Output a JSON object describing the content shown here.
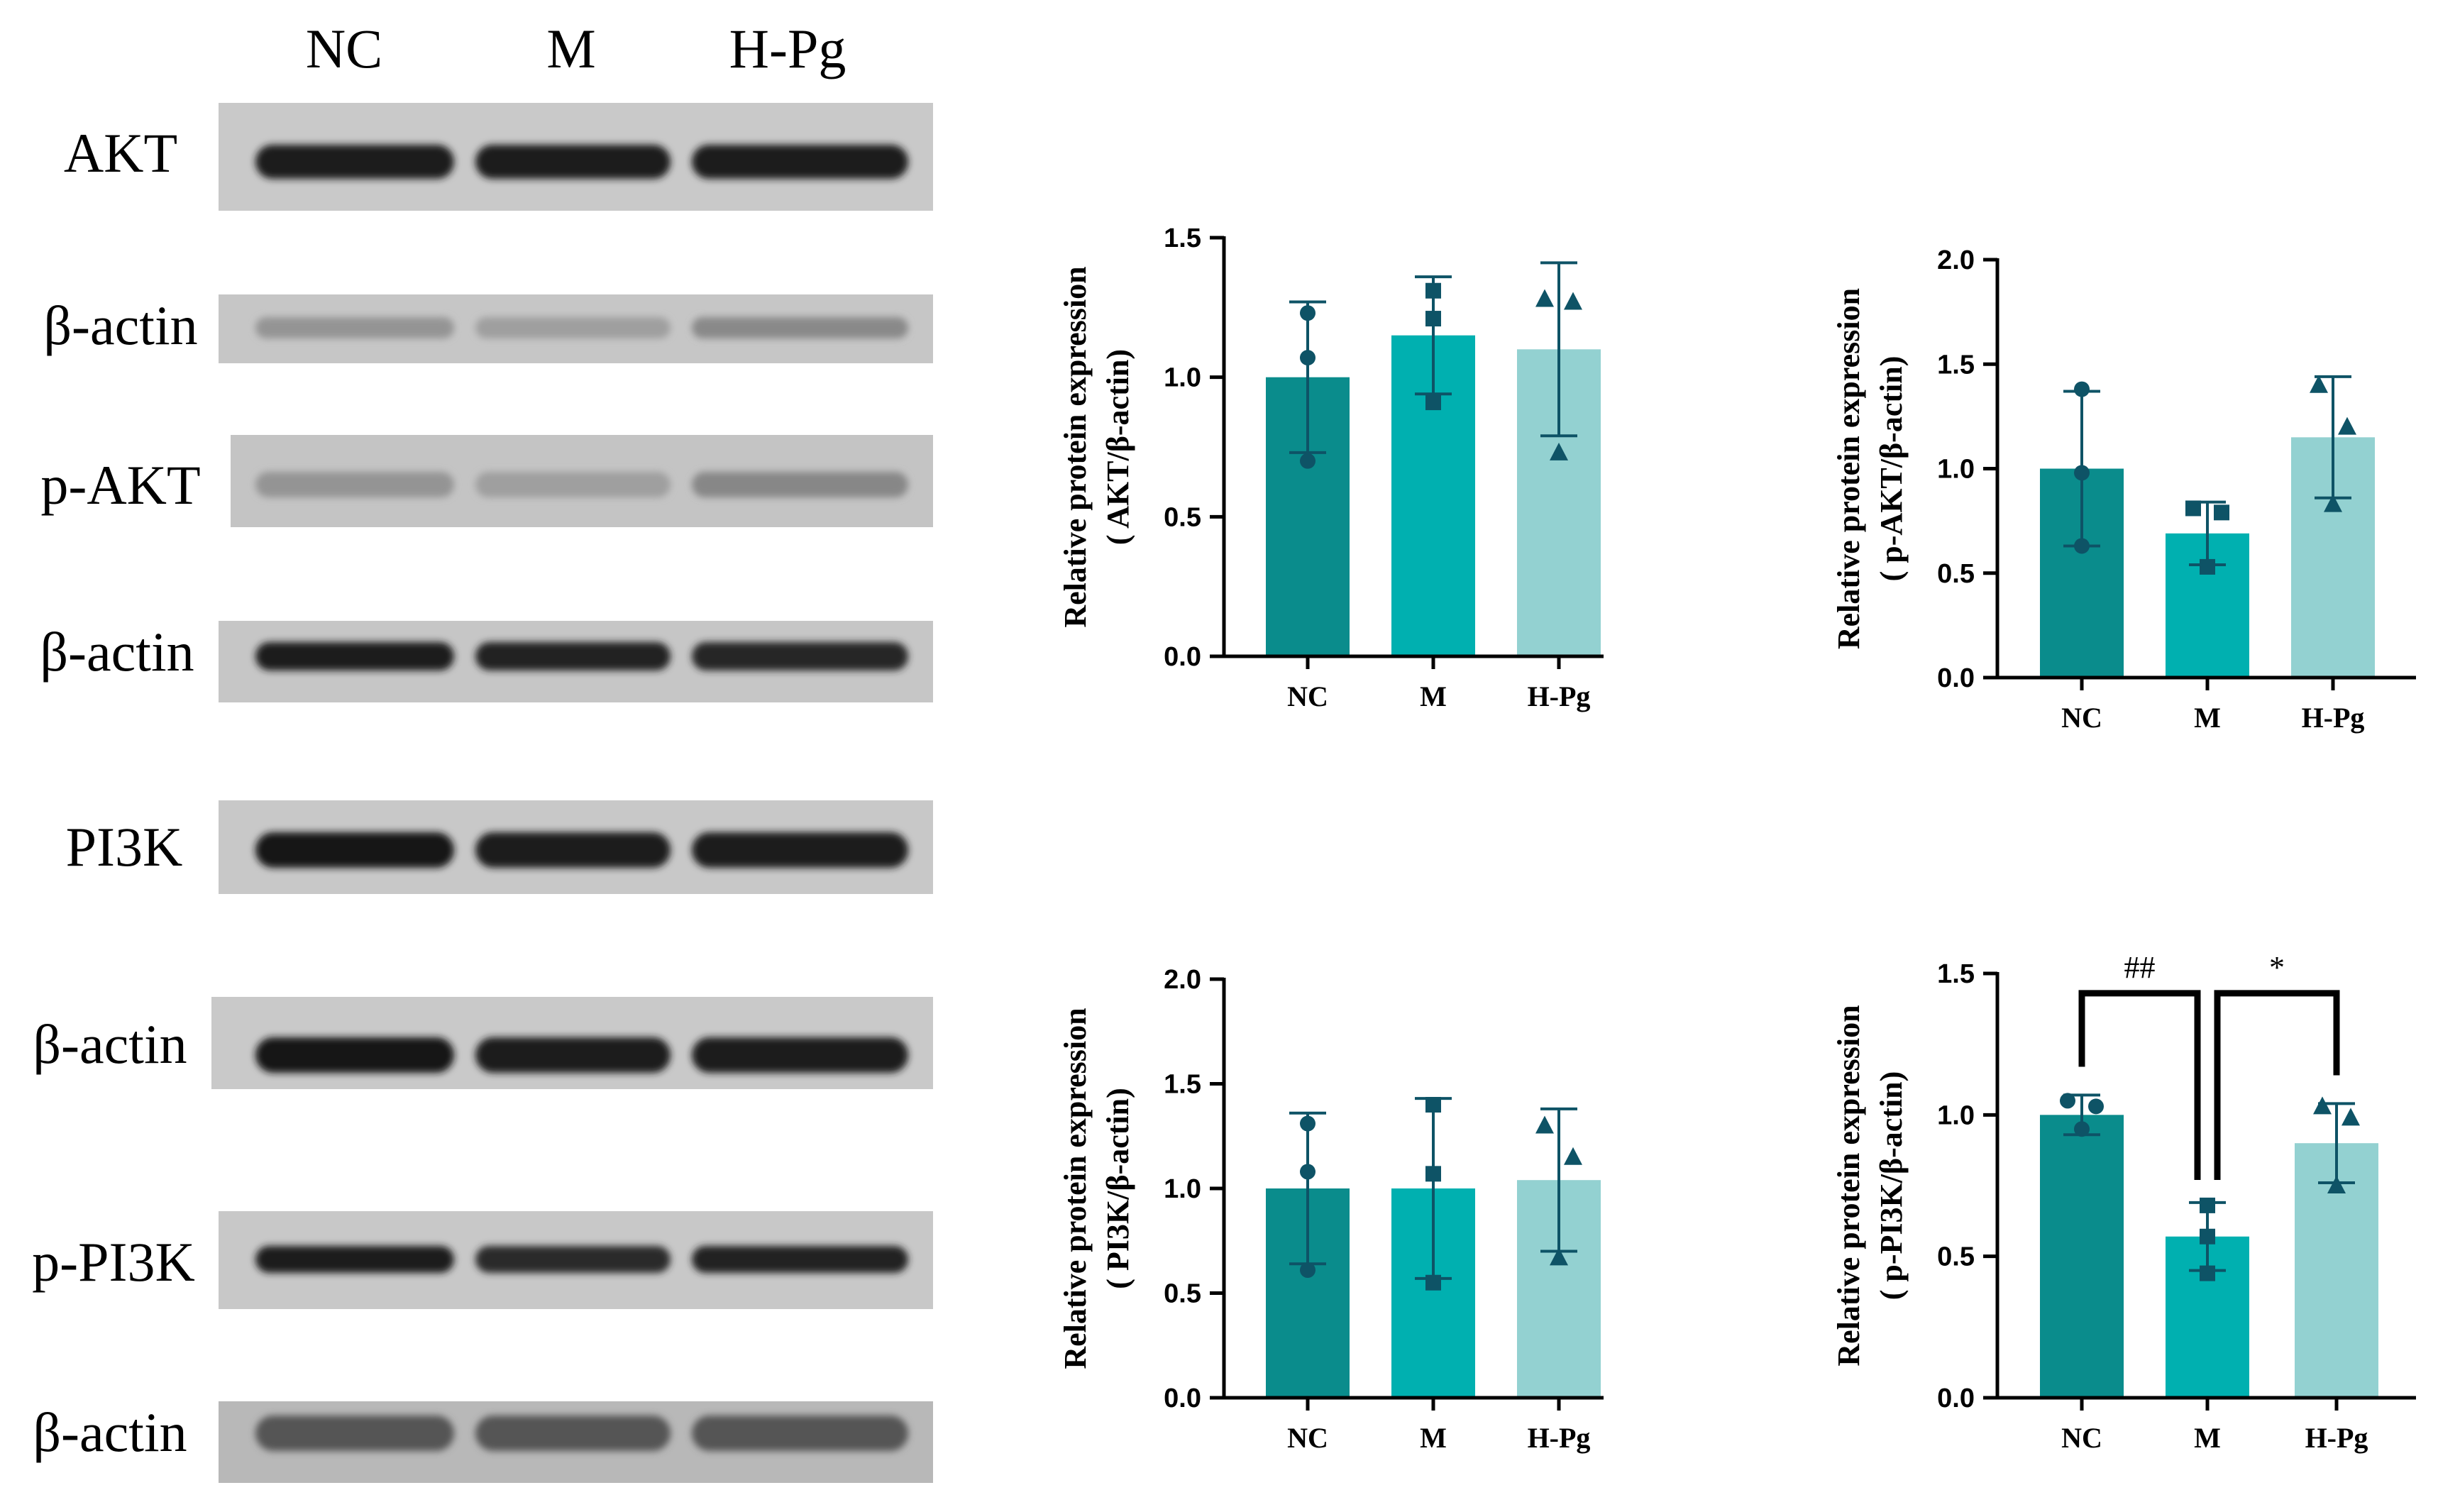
{
  "western_blot": {
    "lanes": [
      "NC",
      "M",
      "H-Pg"
    ],
    "rows": [
      {
        "label": "AKT"
      },
      {
        "label": "β-actin"
      },
      {
        "label": "p-AKT"
      },
      {
        "label": "β-actin"
      },
      {
        "label": "PI3K"
      },
      {
        "label": "β-actin"
      },
      {
        "label": "p-PI3K"
      },
      {
        "label": "β-actin"
      }
    ]
  },
  "colors": {
    "NC": "#0a8c8c",
    "M": "#00b0b0",
    "H-Pg": "#93d1d1",
    "marker": "#0e5366",
    "axis": "#000000"
  },
  "chart_data": [
    {
      "type": "bar",
      "categories": [
        "NC",
        "M",
        "H-Pg"
      ],
      "values": [
        1.0,
        1.15,
        1.1
      ],
      "errors": [
        0.27,
        0.21,
        0.31
      ],
      "points": [
        [
          1.23,
          1.07,
          0.7
        ],
        [
          1.31,
          1.21,
          0.91
        ],
        [
          1.28,
          1.27,
          0.73
        ]
      ],
      "markers": [
        "circle",
        "square",
        "triangle"
      ],
      "ylabel": "Relative protein expression",
      "ylabel2": "( AKT/β-actin)",
      "ylim": [
        0,
        1.5
      ],
      "yticks": [
        "0.0",
        "0.5",
        "1.0",
        "1.5"
      ]
    },
    {
      "type": "bar",
      "categories": [
        "NC",
        "M",
        "H-Pg"
      ],
      "values": [
        1.0,
        0.69,
        1.15
      ],
      "errors": [
        0.37,
        0.15,
        0.29
      ],
      "points": [
        [
          1.38,
          0.98,
          0.63
        ],
        [
          0.81,
          0.79,
          0.53
        ],
        [
          1.4,
          1.2,
          0.83
        ]
      ],
      "markers": [
        "circle",
        "square",
        "triangle"
      ],
      "ylabel": "Relative protein expression",
      "ylabel2": "( p-AKT/β-actin)",
      "ylim": [
        0,
        2.0
      ],
      "yticks": [
        "0.0",
        "0.5",
        "1.0",
        "1.5",
        "2.0"
      ]
    },
    {
      "type": "bar",
      "categories": [
        "NC",
        "M",
        "H-Pg"
      ],
      "values": [
        1.0,
        1.0,
        1.04
      ],
      "errors": [
        0.36,
        0.43,
        0.34
      ],
      "points": [
        [
          1.31,
          1.08,
          0.61
        ],
        [
          1.4,
          1.07,
          0.55
        ],
        [
          1.3,
          1.15,
          0.67
        ]
      ],
      "markers": [
        "circle",
        "square",
        "triangle"
      ],
      "ylabel": "Relative protein expression",
      "ylabel2": "( PI3K/β-actin)",
      "ylim": [
        0,
        2.0
      ],
      "yticks": [
        "0.0",
        "0.5",
        "1.0",
        "1.5",
        "2.0"
      ]
    },
    {
      "type": "bar",
      "categories": [
        "NC",
        "M",
        "H-Pg"
      ],
      "values": [
        1.0,
        0.57,
        0.9
      ],
      "errors": [
        0.07,
        0.12,
        0.14
      ],
      "points": [
        [
          1.05,
          1.03,
          0.95
        ],
        [
          0.68,
          0.57,
          0.44
        ],
        [
          1.03,
          0.99,
          0.75
        ]
      ],
      "markers": [
        "circle",
        "square",
        "triangle"
      ],
      "ylabel": "Relative protein expression",
      "ylabel2": "( p-PI3K/β-actin)",
      "ylim": [
        0,
        1.5
      ],
      "yticks": [
        "0.0",
        "0.5",
        "1.0",
        "1.5"
      ],
      "significance": [
        {
          "from": "NC",
          "to": "M",
          "label": "##"
        },
        {
          "from": "M",
          "to": "H-Pg",
          "label": "*"
        }
      ]
    }
  ]
}
